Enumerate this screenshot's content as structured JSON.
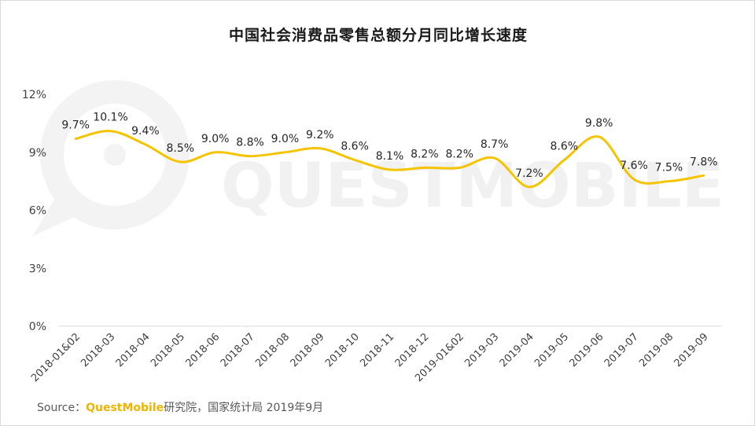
{
  "chart_data": {
    "type": "line",
    "title": "中国社会消费品零售总额分月同比增长速度",
    "categories": [
      "2018-01&02",
      "2018-03",
      "2018-04",
      "2018-05",
      "2018-06",
      "2018-07",
      "2018-08",
      "2018-09",
      "2018-10",
      "2018-11",
      "2018-12",
      "2019-01&02",
      "2019-03",
      "2019-04",
      "2019-05",
      "2019-06",
      "2019-07",
      "2019-08",
      "2019-09"
    ],
    "series": [
      {
        "values": [
          9.7,
          10.1,
          9.4,
          8.5,
          9.0,
          8.8,
          9.0,
          9.2,
          8.6,
          8.1,
          8.2,
          8.2,
          8.7,
          7.2,
          8.6,
          9.8,
          7.6,
          7.5,
          7.8
        ]
      }
    ],
    "data_labels": [
      "9.7%",
      "10.1%",
      "9.4%",
      "8.5%",
      "9.0%",
      "8.8%",
      "9.0%",
      "9.2%",
      "8.6%",
      "8.1%",
      "8.2%",
      "8.2%",
      "8.7%",
      "7.2%",
      "8.6%",
      "9.8%",
      "7.6%",
      "7.5%",
      "7.8%"
    ],
    "y_ticks": [
      {
        "value": 0,
        "label": "0%"
      },
      {
        "value": 3,
        "label": "3%"
      },
      {
        "value": 6,
        "label": "6%"
      },
      {
        "value": 9,
        "label": "9%"
      },
      {
        "value": 12,
        "label": "12%"
      }
    ],
    "ylim": [
      0,
      12
    ],
    "smooth": true,
    "grid": false,
    "line_color": "#f5c400",
    "xlabel": "",
    "ylabel": ""
  },
  "source": {
    "prefix": "Source：",
    "brand": "QuestMobile",
    "rest": "研究院，国家统计局 2019年9月",
    "brand_color": "#f0b400"
  },
  "watermark": {
    "text": "QUESTMOBILE",
    "color": "#f1f1f1"
  }
}
